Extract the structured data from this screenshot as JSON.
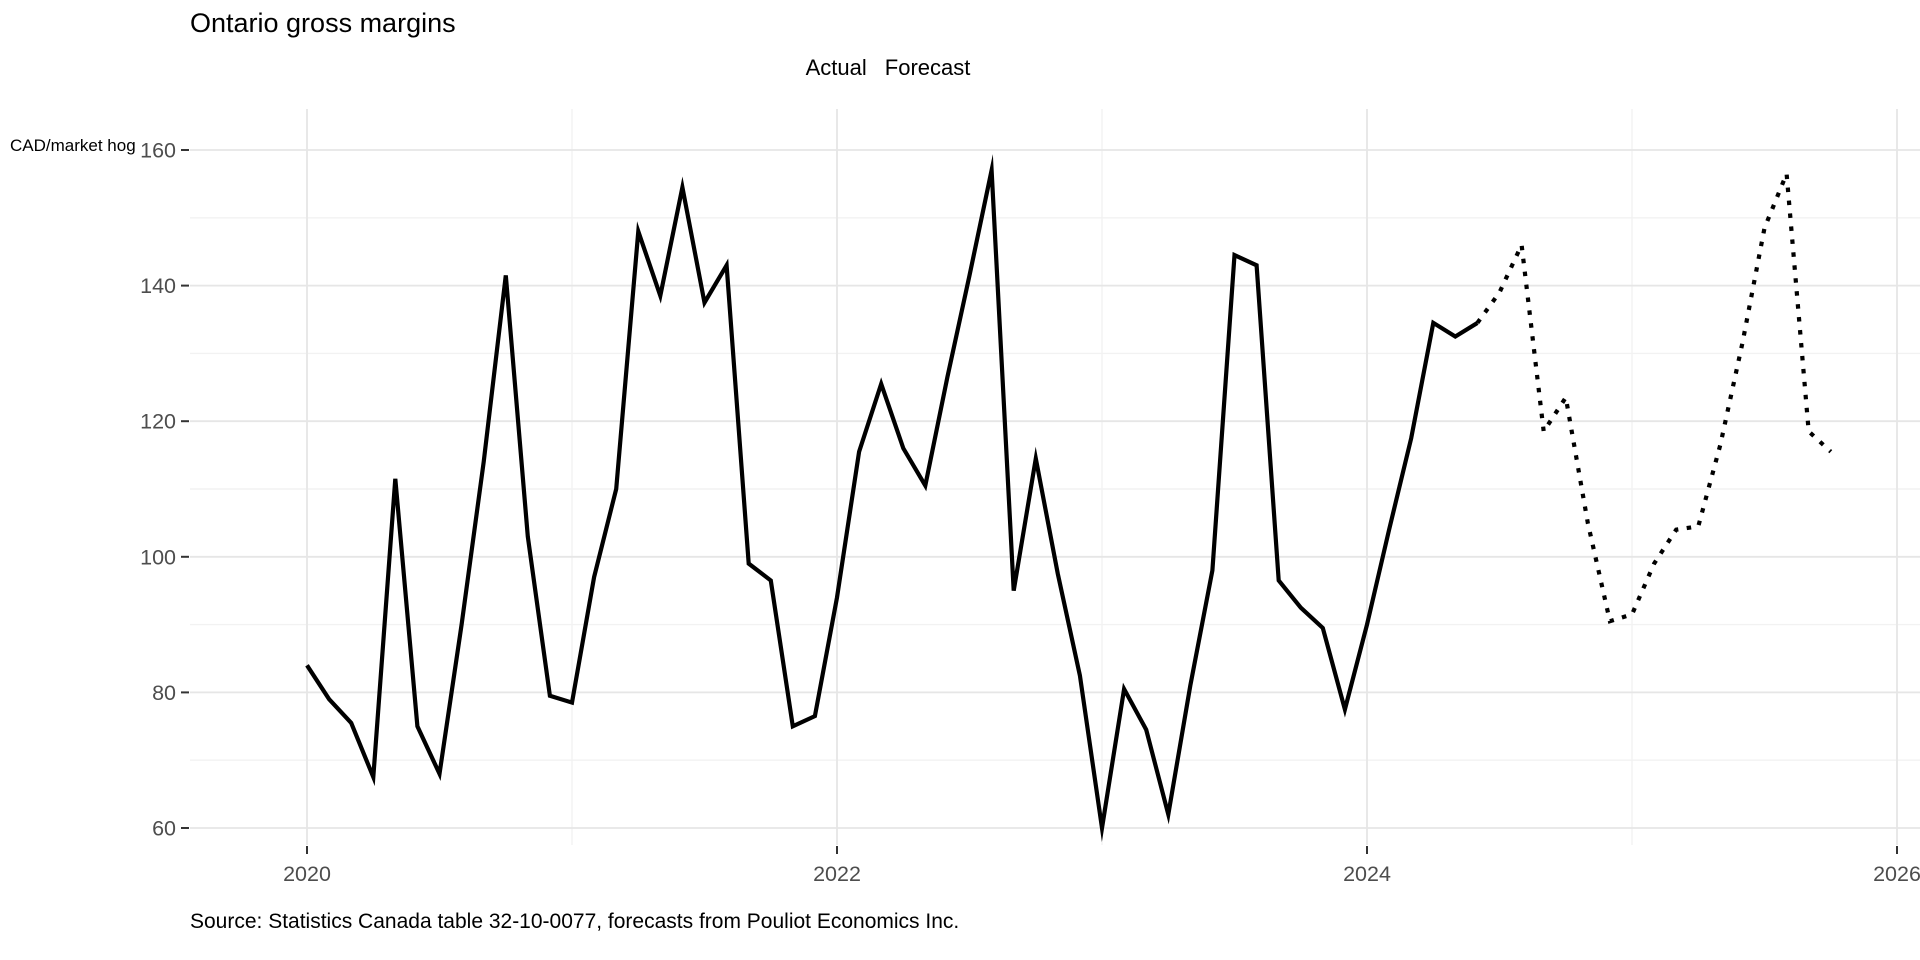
{
  "title": "Ontario gross margins",
  "y_unit_label": "CAD/market hog",
  "legend": {
    "actual_label": "Actual",
    "forecast_label": "Forecast"
  },
  "source_note": "Source: Statistics Canada table 32-10-0077, forecasts from Pouliot Economics Inc.",
  "colors": {
    "line": "#000000",
    "tick_label": "#4d4d4d",
    "grid_major": "#e6e6e6",
    "grid_minor": "#f2f2f2",
    "tick_mark": "#333333"
  },
  "chart_data": {
    "type": "line",
    "title": "Ontario gross margins",
    "xlabel": "",
    "ylabel": "CAD/market hog",
    "grid": "on",
    "legend_position": "top-center",
    "x_axis": {
      "breaks": [
        2020,
        2022,
        2024,
        2026
      ],
      "labels": [
        "2020",
        "2022",
        "2024",
        "2026"
      ],
      "minor_breaks": [
        2021,
        2023,
        2025
      ],
      "range": [
        2019.55,
        2026.1
      ]
    },
    "y_axis": {
      "breaks": [
        60,
        80,
        100,
        120,
        140,
        160
      ],
      "labels": [
        "60",
        "80",
        "100",
        "120",
        "140",
        "160"
      ],
      "minor_breaks": [
        70,
        90,
        110,
        130,
        150
      ],
      "range": [
        57.5,
        166
      ]
    },
    "series": [
      {
        "name": "Actual",
        "style": "solid",
        "start": "2020-01",
        "cadence": "monthly",
        "values": [
          84,
          79,
          75.5,
          67.5,
          111.5,
          75,
          68,
          90,
          114,
          141.5,
          103,
          79.5,
          78.5,
          97,
          110,
          148,
          138.5,
          154.5,
          137.5,
          143,
          99,
          96.5,
          75,
          76.5,
          94,
          115.5,
          125.5,
          116,
          110.5,
          126.5,
          141.5,
          157,
          95,
          114.5,
          97.5,
          82.5,
          60,
          80.5,
          74.5,
          62,
          81,
          98,
          144.5,
          143,
          96.5,
          92.5,
          89.5,
          77.5,
          90,
          104,
          117.5,
          134.5,
          132.5,
          134.5
        ]
      },
      {
        "name": "Forecast",
        "style": "dotted",
        "start": "2024-06",
        "cadence": "monthly",
        "values": [
          134.5,
          139,
          146,
          118.5,
          123.5,
          105,
          90.5,
          91.5,
          99,
          104,
          104.5,
          116.5,
          131.5,
          148.5,
          156.5,
          118.5,
          115.5
        ]
      }
    ]
  }
}
